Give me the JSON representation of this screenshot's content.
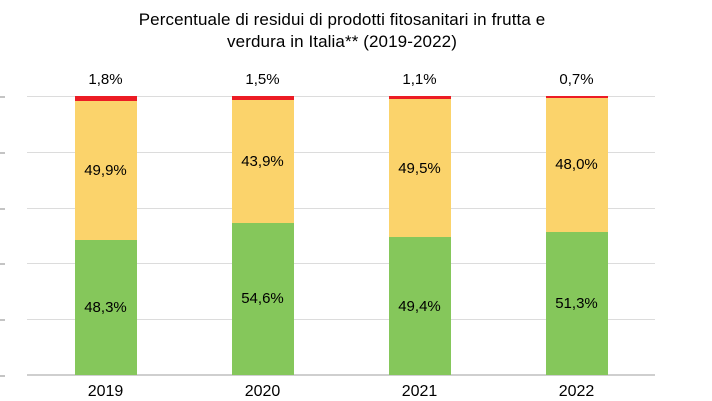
{
  "title": {
    "line1": "Percentuale di residui di prodotti fitosanitari in frutta e",
    "line2": "verdura in Italia** (2019-2022)"
  },
  "chart_data": {
    "type": "bar",
    "subtype": "stacked-percentage-column",
    "title": "Percentuale di residui di prodotti fitosanitari in frutta e verdura in Italia** (2019-2022)",
    "categories": [
      "2019",
      "2020",
      "2021",
      "2022"
    ],
    "series": [
      {
        "name": "green-bottom-segment",
        "color": "#85C75B",
        "values": [
          48.3,
          54.6,
          49.4,
          51.3
        ],
        "labels": [
          "48,3%",
          "54,6%",
          "49,4%",
          "51,3%"
        ]
      },
      {
        "name": "yellow-middle-segment",
        "color": "#FBD36B",
        "values": [
          49.9,
          43.9,
          49.5,
          48.0
        ],
        "labels": [
          "49,9%",
          "43,9%",
          "49,5%",
          "48,0%"
        ]
      },
      {
        "name": "red-top-segment",
        "color": "#EC1C24",
        "values": [
          1.8,
          1.5,
          1.1,
          0.7
        ],
        "labels": [
          "1,8%",
          "1,5%",
          "1,1%",
          "0,7%"
        ]
      }
    ],
    "xlabel": "",
    "ylabel": "",
    "ylim": [
      0,
      100
    ],
    "grid": true,
    "gridline_step": 20,
    "y_axis_labels_visible": false,
    "legend": "none",
    "value_label_format": "comma-decimal-percent",
    "colors": {
      "grid": "#DCDCDC",
      "axis": "#CFCFCF",
      "tick": "#C4C4C4",
      "text": "#000000"
    }
  }
}
